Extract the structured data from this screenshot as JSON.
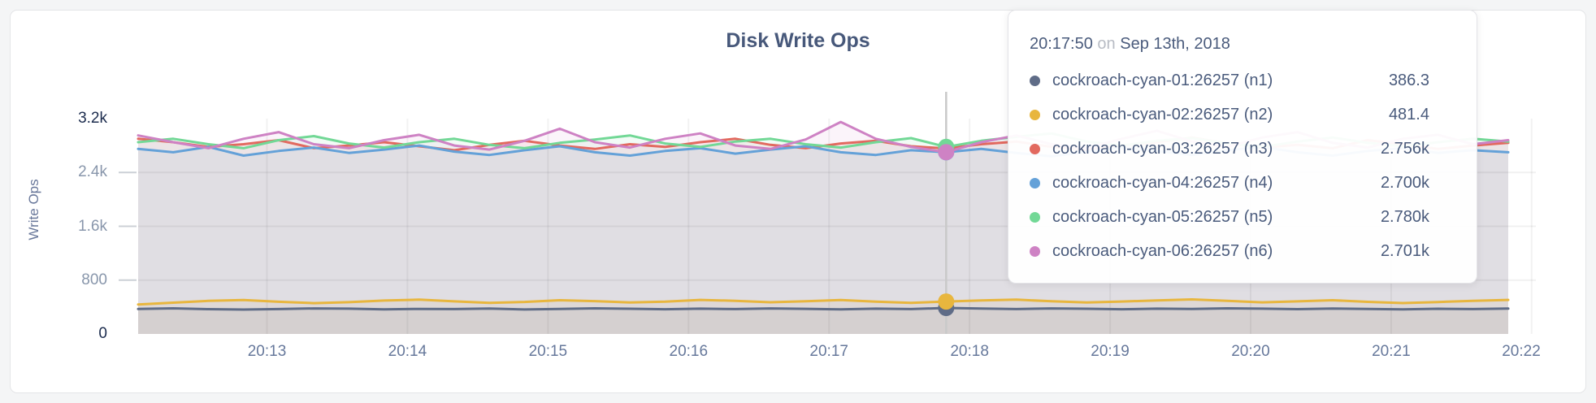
{
  "page": {
    "title": "Disk Write Ops"
  },
  "y_axis": {
    "label": "Write Ops",
    "ticks": [
      {
        "label": "3.2k",
        "value": 3200,
        "emphasis": true
      },
      {
        "label": "2.4k",
        "value": 2400,
        "emphasis": false
      },
      {
        "label": "1.6k",
        "value": 1600,
        "emphasis": false
      },
      {
        "label": "800",
        "value": 800,
        "emphasis": false
      },
      {
        "label": "0",
        "value": 0,
        "emphasis": true
      }
    ]
  },
  "x_axis": {
    "ticks": [
      "20:13",
      "20:14",
      "20:15",
      "20:16",
      "20:17",
      "20:18",
      "20:19",
      "20:20",
      "20:21",
      "20:22"
    ]
  },
  "tooltip": {
    "time": "20:17:50",
    "on_word": "on",
    "date": "Sep 13th, 2018",
    "rows": [
      {
        "name": "cockroach-cyan-01:26257 (n1)",
        "value": "386.3",
        "color": "#5f6c87"
      },
      {
        "name": "cockroach-cyan-02:26257 (n2)",
        "value": "481.4",
        "color": "#e8b63e"
      },
      {
        "name": "cockroach-cyan-03:26257 (n3)",
        "value": "2.756k",
        "color": "#e2695f"
      },
      {
        "name": "cockroach-cyan-04:26257 (n4)",
        "value": "2.700k",
        "color": "#64a1d8"
      },
      {
        "name": "cockroach-cyan-05:26257 (n5)",
        "value": "2.780k",
        "color": "#72d896"
      },
      {
        "name": "cockroach-cyan-06:26257 (n6)",
        "value": "2.701k",
        "color": "#ce82c4"
      }
    ]
  },
  "chart_data": {
    "type": "area",
    "title": "Disk Write Ops",
    "xlabel": "",
    "ylabel": "Write Ops",
    "ylim": [
      0,
      3200
    ],
    "grid": true,
    "legend_position": "tooltip",
    "x_start": "20:12:05",
    "x_end": "20:21:50",
    "sample_interval_sec": 15,
    "hover_time": "20:17:50",
    "x_ticks": [
      "20:13",
      "20:14",
      "20:15",
      "20:16",
      "20:17",
      "20:18",
      "20:19",
      "20:20",
      "20:21",
      "20:22"
    ],
    "series": [
      {
        "name": "cockroach-cyan-01:26257 (n1)",
        "color": "#5f6c87",
        "values": [
          371,
          380,
          368,
          362,
          370,
          379,
          375,
          366,
          372,
          369,
          377,
          364,
          371,
          380,
          374,
          367,
          376,
          370,
          379,
          373,
          366,
          375,
          369,
          386.3,
          377,
          370,
          379,
          374,
          367,
          376,
          371,
          380,
          375,
          368,
          377,
          372,
          366,
          374,
          370,
          377
        ]
      },
      {
        "name": "cockroach-cyan-02:26257 (n2)",
        "color": "#e8b63e",
        "values": [
          438,
          465,
          492,
          505,
          478,
          458,
          472,
          496,
          510,
          484,
          462,
          476,
          501,
          488,
          468,
          481,
          506,
          493,
          471,
          487,
          503,
          479,
          463,
          481.4,
          497,
          509,
          485,
          468,
          482,
          499,
          513,
          491,
          470,
          484,
          501,
          477,
          459,
          474,
          493,
          506
        ]
      },
      {
        "name": "cockroach-cyan-03:26257 (n3)",
        "color": "#e2695f",
        "values": [
          2900,
          2850,
          2780,
          2820,
          2880,
          2760,
          2800,
          2850,
          2790,
          2730,
          2810,
          2870,
          2800,
          2750,
          2820,
          2780,
          2850,
          2900,
          2810,
          2760,
          2830,
          2870,
          2790,
          2756,
          2820,
          2860,
          2780,
          2740,
          2800,
          2850,
          2920,
          2830,
          2770,
          2810,
          2760,
          2880,
          2820,
          2750,
          2800,
          2840
        ]
      },
      {
        "name": "cockroach-cyan-04:26257 (n4)",
        "color": "#64a1d8",
        "values": [
          2750,
          2700,
          2780,
          2650,
          2720,
          2770,
          2690,
          2740,
          2800,
          2710,
          2660,
          2730,
          2790,
          2700,
          2650,
          2720,
          2760,
          2680,
          2740,
          2790,
          2700,
          2660,
          2730,
          2700,
          2750,
          2690,
          2640,
          2710,
          2770,
          2720,
          2660,
          2730,
          2780,
          2700,
          2650,
          2720,
          2760,
          2690,
          2730,
          2700
        ]
      },
      {
        "name": "cockroach-cyan-05:26257 (n5)",
        "color": "#72d896",
        "values": [
          2850,
          2900,
          2820,
          2760,
          2880,
          2940,
          2830,
          2770,
          2850,
          2900,
          2810,
          2760,
          2840,
          2890,
          2950,
          2830,
          2780,
          2860,
          2900,
          2820,
          2770,
          2850,
          2910,
          2780,
          2870,
          2930,
          2980,
          2860,
          2800,
          2870,
          2910,
          2830,
          2780,
          2860,
          2920,
          2840,
          2790,
          2850,
          2900,
          2860
        ]
      },
      {
        "name": "cockroach-cyan-06:26257 (n6)",
        "color": "#ce82c4",
        "values": [
          2950,
          2850,
          2760,
          2900,
          3000,
          2820,
          2760,
          2880,
          2960,
          2800,
          2740,
          2870,
          3050,
          2850,
          2770,
          2900,
          2980,
          2800,
          2750,
          2890,
          3150,
          2900,
          2780,
          2701,
          2850,
          2950,
          2820,
          2760,
          2900,
          3020,
          2860,
          2780,
          2920,
          3000,
          2840,
          2770,
          2900,
          2960,
          2820,
          2880
        ]
      }
    ]
  }
}
